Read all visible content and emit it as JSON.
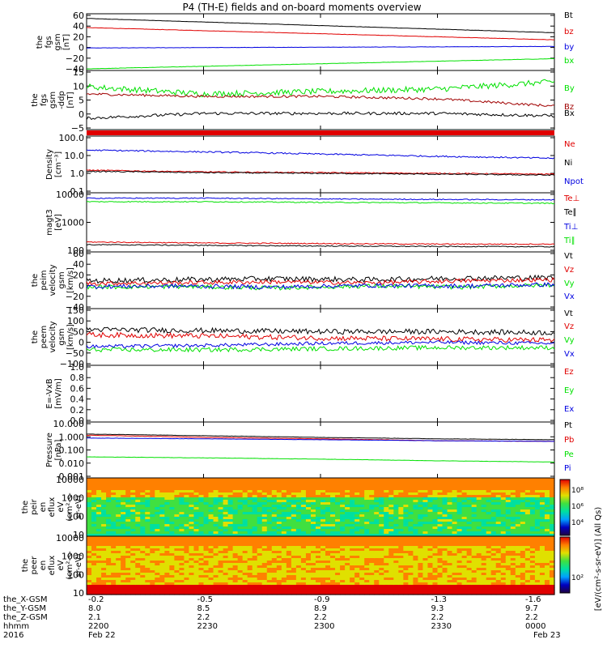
{
  "title": "P4 (TH-E) fields and on-board moments overview",
  "colors": {
    "black": "#000000",
    "red": "#e00000",
    "green": "#00e000",
    "blue": "#0000e0",
    "darkred": "#a00000",
    "yellow": "#e0e000",
    "colorbar_stops": [
      "#200040",
      "#0000c0",
      "#00a0ff",
      "#00e0a0",
      "#40e040",
      "#e0e000",
      "#ff8000",
      "#e00000"
    ]
  },
  "time_axis": {
    "hhmm": [
      "2200",
      "2230",
      "2300",
      "2330",
      "0000"
    ],
    "x_gsm": [
      "-0.2",
      "-0.5",
      "-0.9",
      "-1.3",
      "-1.6"
    ],
    "y_gsm": [
      "8.0",
      "8.5",
      "8.9",
      "9.3",
      "9.7"
    ],
    "z_gsm": [
      "2.1",
      "2.2",
      "2.2",
      "2.2",
      "2.2"
    ],
    "dates": [
      "Feb 22",
      "",
      "",
      "",
      "Feb 23"
    ],
    "row_labels": [
      "the_X-GSM",
      "the_Y-GSM",
      "the_Z-GSM",
      "hhmm",
      "2016"
    ]
  },
  "colorbar": {
    "label": "[eV/(cm²-s-sr-eV)] (All Qs)",
    "ticks": [
      "10⁸",
      "10⁶",
      "10⁴",
      "10²"
    ]
  },
  "chart_data": [
    {
      "type": "line",
      "panel": "fgs",
      "ylabel_lines": [
        "the",
        "fgs",
        "gsm",
        "[nT]"
      ],
      "ylim": [
        -40,
        65
      ],
      "yticks": [
        "60",
        "40",
        "20",
        "0",
        "−20",
        "−40"
      ],
      "x": [
        0,
        1
      ],
      "series": [
        {
          "name": "Bt",
          "color": "#000000",
          "values": [
            59,
            31
          ],
          "noise": 0.3
        },
        {
          "name": "bz",
          "color": "#e00000",
          "values": [
            41,
            17
          ],
          "noise": 0.3
        },
        {
          "name": "by",
          "color": "#0000e0",
          "values": [
            1,
            4
          ],
          "noise": 0.3
        },
        {
          "name": "bx",
          "color": "#00e000",
          "values": [
            -40,
            -20
          ],
          "noise": 0.3
        }
      ]
    },
    {
      "type": "line",
      "panel": "fgs_dsl",
      "ylabel_lines": [
        "the",
        "fgs",
        "gsm",
        "-ddp",
        "[nT]"
      ],
      "ylim": [
        -8,
        15
      ],
      "yticks": [
        "15",
        "10",
        "5",
        "0",
        "−5"
      ],
      "series": [
        {
          "name": "By",
          "color": "#00e000",
          "values": [
            9,
            6,
            7,
            8,
            11
          ],
          "noise": 1.2
        },
        {
          "name": "Bz",
          "color": "#a00000",
          "values": [
            6,
            5,
            5,
            4,
            1
          ],
          "noise": 0.5
        },
        {
          "name": "Bx",
          "color": "#000000",
          "values": [
            -4,
            -2,
            -2,
            -2,
            -3
          ],
          "noise": 0.6
        }
      ]
    },
    {
      "type": "line",
      "panel": "density",
      "log": true,
      "ylabel_lines": [
        "Density",
        "[cm⁻³]"
      ],
      "ylim": [
        0.1,
        100
      ],
      "yticks": [
        "100.0",
        "10.0",
        "1.0",
        "0.1"
      ],
      "series": [
        {
          "name": "Ne",
          "color": "#e00000",
          "values": [
            1.5,
            1.2,
            1.1,
            1.0,
            0.9
          ],
          "noise": 0.03
        },
        {
          "name": "Ni",
          "color": "#000000",
          "values": [
            1.3,
            1.1,
            1.0,
            0.9,
            0.8
          ],
          "noise": 0.03
        },
        {
          "name": "Npot",
          "color": "#0000e0",
          "values": [
            20,
            16,
            12,
            9,
            7
          ],
          "noise": 0.04
        }
      ]
    },
    {
      "type": "line",
      "panel": "temperature",
      "log": true,
      "ylabel_lines": [
        "magt3",
        "[eV]"
      ],
      "ylim": [
        50,
        10000
      ],
      "yticks": [
        "10000",
        "1000",
        "100"
      ],
      "series": [
        {
          "name": "Te⊥",
          "color": "#e00000",
          "values": [
            110,
            100,
            95,
            90,
            90
          ],
          "noise": 0.02
        },
        {
          "name": "Te∥",
          "color": "#000000",
          "values": [
            85,
            80,
            75,
            72,
            70
          ],
          "noise": 0.02
        },
        {
          "name": "Ti⊥",
          "color": "#0000e0",
          "values": [
            7000,
            7000,
            6500,
            6200,
            6000
          ],
          "noise": 0.02
        },
        {
          "name": "Ti∥",
          "color": "#00e000",
          "values": [
            5000,
            5000,
            4700,
            4500,
            4300
          ],
          "noise": 0.02
        }
      ]
    },
    {
      "type": "line",
      "panel": "peim_velocity",
      "ylabel_lines": [
        "the",
        "peim",
        "velocity",
        "gsm",
        "[km/s]"
      ],
      "ylim": [
        -40,
        62
      ],
      "yticks": [
        "60",
        "40",
        "20",
        "0",
        "−20",
        "−40"
      ],
      "series": [
        {
          "name": "Vt",
          "color": "#000000",
          "values": [
            10,
            12,
            14,
            12,
            15,
            16
          ],
          "noise": 5
        },
        {
          "name": "Vz",
          "color": "#e00000",
          "values": [
            5,
            6,
            8,
            6,
            10,
            12
          ],
          "noise": 4
        },
        {
          "name": "Vy",
          "color": "#00e000",
          "values": [
            -2,
            -1,
            -4,
            0,
            -2,
            2
          ],
          "noise": 4
        },
        {
          "name": "Vx",
          "color": "#0000e0",
          "values": [
            -1,
            0,
            -2,
            1,
            0,
            3
          ],
          "noise": 4
        }
      ]
    },
    {
      "type": "line",
      "panel": "peem_velocity",
      "ylabel_lines": [
        "the",
        "peem",
        "velocity",
        "gsm",
        "[km/s]"
      ],
      "ylim": [
        -100,
        150
      ],
      "yticks": [
        "150",
        "100",
        "50",
        "0",
        "−50",
        "−100"
      ],
      "series": [
        {
          "name": "Vt",
          "color": "#000000",
          "values": [
            60,
            55,
            50,
            50,
            45
          ],
          "noise": 12
        },
        {
          "name": "Vz",
          "color": "#e00000",
          "values": [
            35,
            30,
            20,
            15,
            10
          ],
          "noise": 12
        },
        {
          "name": "Vy",
          "color": "#00e000",
          "values": [
            -35,
            -35,
            -30,
            -25,
            -25
          ],
          "noise": 10
        },
        {
          "name": "Vx",
          "color": "#0000e0",
          "values": [
            -20,
            -15,
            -5,
            0,
            -5
          ],
          "noise": 8
        }
      ]
    },
    {
      "type": "line",
      "panel": "efield",
      "ylabel_lines": [
        "E=-VxB",
        "[mV/m]"
      ],
      "ylim": [
        0,
        1
      ],
      "yticks": [
        "1.0",
        "0.8",
        "0.6",
        "0.4",
        "0.2",
        "0.0"
      ],
      "series": [
        {
          "name": "Ez",
          "color": "#e00000",
          "values": []
        },
        {
          "name": "Ey",
          "color": "#00e000",
          "values": []
        },
        {
          "name": "Ex",
          "color": "#0000e0",
          "values": []
        }
      ]
    },
    {
      "type": "line",
      "panel": "pressure",
      "log": true,
      "ylabel_lines": [
        "Pressure",
        "[nPa]"
      ],
      "ylim": [
        0.001,
        10
      ],
      "yticks": [
        "10.000",
        "1.000",
        "0.100",
        "0.010",
        "0.001"
      ],
      "series": [
        {
          "name": "Pt",
          "color": "#000000",
          "values": [
            1.6,
            1.2,
            0.9,
            0.7,
            0.6
          ],
          "noise": 0.01
        },
        {
          "name": "Pb",
          "color": "#e00000",
          "values": [
            1.3,
            0.9,
            0.7,
            0.5,
            0.45
          ],
          "noise": 0.01
        },
        {
          "name": "Pe",
          "color": "#00e000",
          "values": [
            0.03,
            0.025,
            0.02,
            0.015,
            0.012
          ],
          "noise": 0.01
        },
        {
          "name": "Pi",
          "color": "#0000e0",
          "values": [
            0.8,
            0.7,
            0.6,
            0.5,
            0.45
          ],
          "noise": 0.01
        }
      ]
    },
    {
      "type": "heatmap",
      "panel": "peir_spectrogram",
      "ylabel_lines": [
        "the",
        "peir",
        "en",
        "eflux",
        "eV",
        "(cm²-s-",
        "sr-eV)"
      ],
      "yticks": [
        "10000",
        "1000",
        "100",
        "10"
      ]
    },
    {
      "type": "heatmap",
      "panel": "peer_spectrogram",
      "ylabel_lines": [
        "the",
        "peer",
        "en",
        "eflux",
        "eV",
        "(cm²-s-",
        "sr-eV)"
      ],
      "yticks": [
        "10000",
        "1000",
        "100",
        "10"
      ]
    }
  ]
}
